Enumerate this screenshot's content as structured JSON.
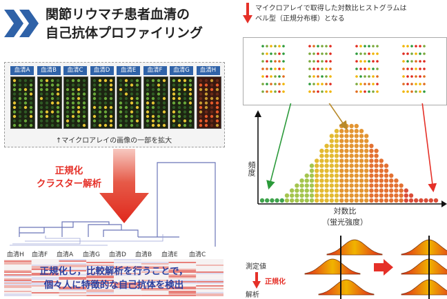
{
  "title": {
    "line1": "関節リウマチ患者血清の",
    "line2": "自己抗体プロファイリング"
  },
  "serums": [
    "血清A",
    "血清B",
    "血清C",
    "血清D",
    "血清E",
    "血清F",
    "血清G",
    "血清H"
  ],
  "microarray_caption": "↑マイクロアレイの画像の一部を拡大",
  "process": {
    "line1": "正規化",
    "line2": "クラスター解析"
  },
  "cluster_order": [
    "血清H",
    "血清F",
    "血清A",
    "血清G",
    "血清D",
    "血清B",
    "血清E",
    "血清C"
  ],
  "conclusion": {
    "line1": "正規化し，比較解析を行うことで，",
    "line2": "個々人に特徴的な自己抗体を検出"
  },
  "histogram_note": {
    "line1": "マイクロアレイで取得した対数比ヒストグラムは",
    "line2": "ベル型（正規分布様）となる"
  },
  "histogram": {
    "ylabel": "頻度",
    "xlabel_line1": "対数比",
    "xlabel_line2": "（蛍光強度）"
  },
  "analysis": {
    "measured": "測定値",
    "normalize": "正規化",
    "analysis": "解析"
  },
  "colors": {
    "accent_blue": "#2f62a8",
    "accent_red": "#e53028",
    "text_blue": "#2a3f9e"
  }
}
